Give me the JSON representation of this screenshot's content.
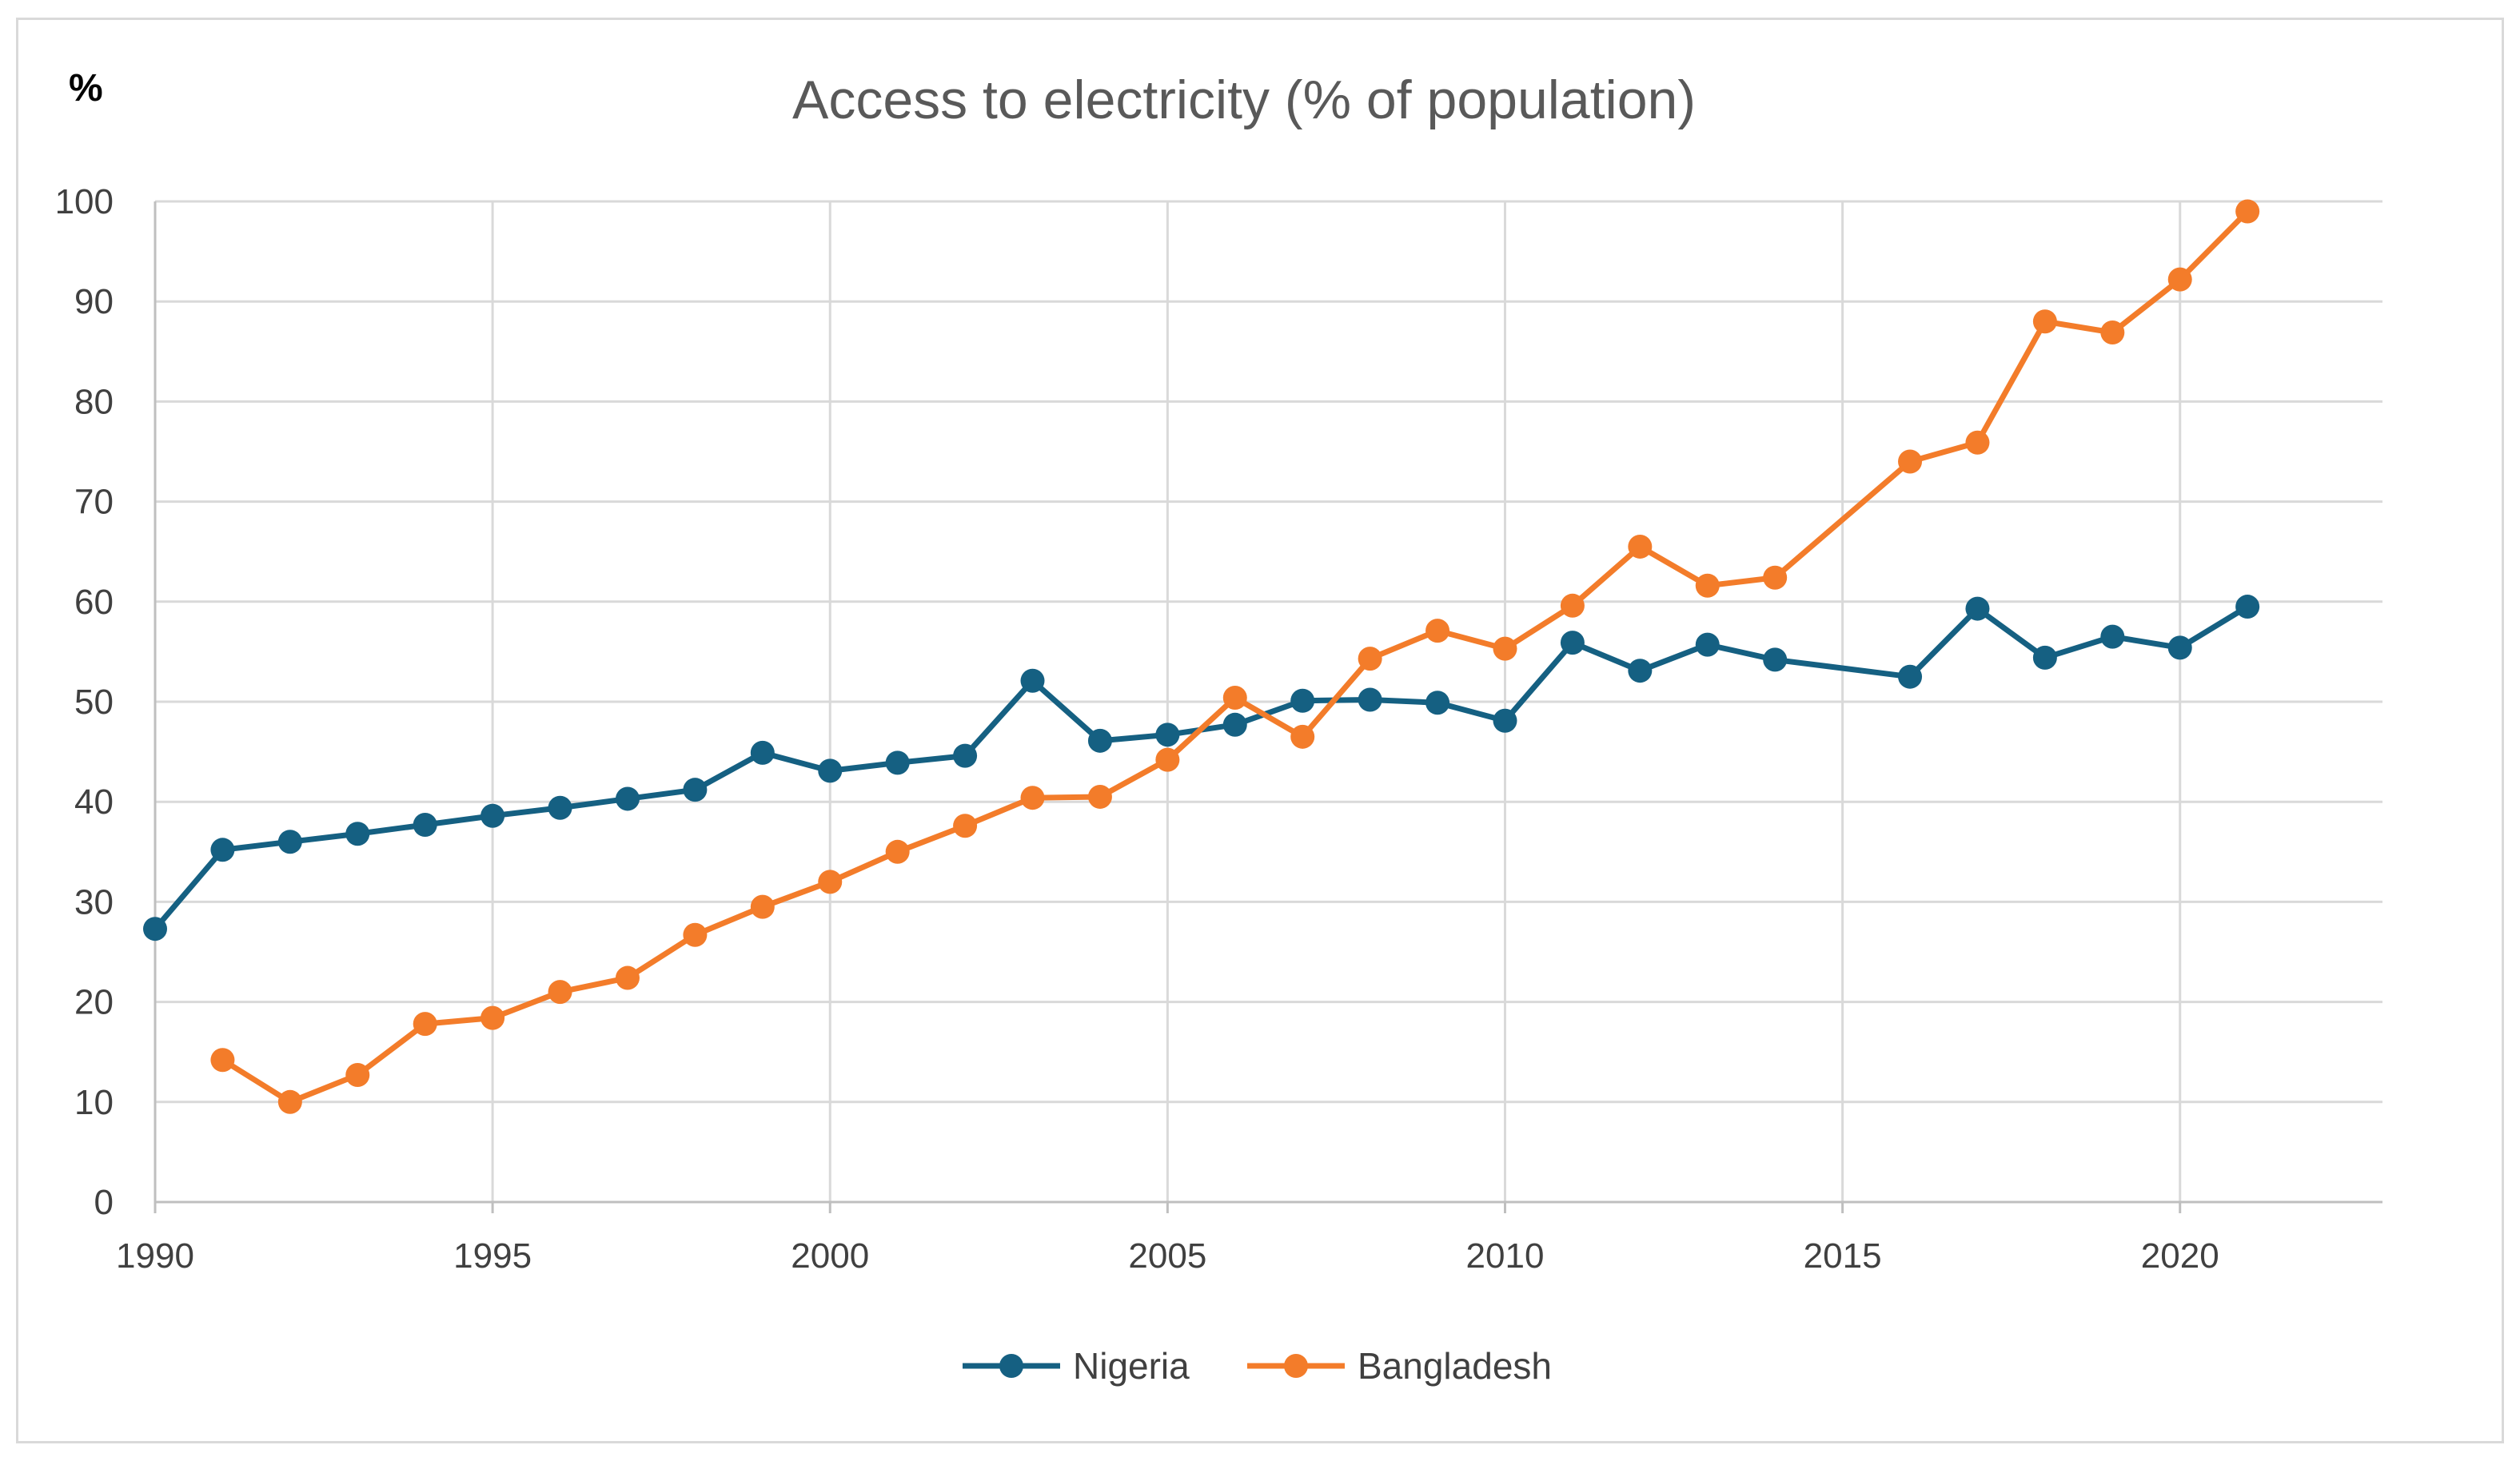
{
  "chart_data": {
    "type": "line",
    "title": "Access to electricity (% of population)",
    "y_unit_label": "%",
    "xlabel": "",
    "ylabel": "%",
    "xlim": [
      1990,
      2023
    ],
    "ylim": [
      0,
      100
    ],
    "x_ticks": [
      1990,
      1995,
      2000,
      2005,
      2010,
      2015,
      2020
    ],
    "y_ticks": [
      0,
      10,
      20,
      30,
      40,
      50,
      60,
      70,
      80,
      90,
      100
    ],
    "grid": true,
    "legend_position": "bottom",
    "series": [
      {
        "name": "Nigeria",
        "color": "#156082",
        "points": [
          {
            "x": 1990,
            "y": 27.3
          },
          {
            "x": 1991,
            "y": 35.2
          },
          {
            "x": 1992,
            "y": 36.0
          },
          {
            "x": 1993,
            "y": 36.8
          },
          {
            "x": 1994,
            "y": 37.7
          },
          {
            "x": 1995,
            "y": 38.6
          },
          {
            "x": 1996,
            "y": 39.4
          },
          {
            "x": 1997,
            "y": 40.3
          },
          {
            "x": 1998,
            "y": 41.2
          },
          {
            "x": 1999,
            "y": 44.9
          },
          {
            "x": 2000,
            "y": 43.1
          },
          {
            "x": 2001,
            "y": 43.9
          },
          {
            "x": 2002,
            "y": 44.6
          },
          {
            "x": 2003,
            "y": 52.1
          },
          {
            "x": 2004,
            "y": 46.1
          },
          {
            "x": 2005,
            "y": 46.7
          },
          {
            "x": 2006,
            "y": 47.7
          },
          {
            "x": 2007,
            "y": 50.1
          },
          {
            "x": 2008,
            "y": 50.2
          },
          {
            "x": 2009,
            "y": 49.9
          },
          {
            "x": 2010,
            "y": 48.1
          },
          {
            "x": 2011,
            "y": 55.9
          },
          {
            "x": 2012,
            "y": 53.1
          },
          {
            "x": 2013,
            "y": 55.7
          },
          {
            "x": 2014,
            "y": 54.2
          },
          {
            "x": 2016,
            "y": 52.5
          },
          {
            "x": 2017,
            "y": 59.3
          },
          {
            "x": 2018,
            "y": 54.4
          },
          {
            "x": 2019,
            "y": 56.5
          },
          {
            "x": 2020,
            "y": 55.4
          },
          {
            "x": 2021,
            "y": 59.5
          }
        ]
      },
      {
        "name": "Bangladesh",
        "color": "#f37c2a",
        "points": [
          {
            "x": 1991,
            "y": 14.2
          },
          {
            "x": 1992,
            "y": 10.0
          },
          {
            "x": 1993,
            "y": 12.7
          },
          {
            "x": 1994,
            "y": 17.8
          },
          {
            "x": 1995,
            "y": 18.4
          },
          {
            "x": 1996,
            "y": 21.0
          },
          {
            "x": 1997,
            "y": 22.4
          },
          {
            "x": 1998,
            "y": 26.7
          },
          {
            "x": 1999,
            "y": 29.5
          },
          {
            "x": 2000,
            "y": 32.0
          },
          {
            "x": 2001,
            "y": 35.0
          },
          {
            "x": 2002,
            "y": 37.6
          },
          {
            "x": 2003,
            "y": 40.4
          },
          {
            "x": 2004,
            "y": 40.5
          },
          {
            "x": 2005,
            "y": 44.2
          },
          {
            "x": 2006,
            "y": 50.4
          },
          {
            "x": 2007,
            "y": 46.5
          },
          {
            "x": 2008,
            "y": 54.3
          },
          {
            "x": 2009,
            "y": 57.1
          },
          {
            "x": 2010,
            "y": 55.3
          },
          {
            "x": 2011,
            "y": 59.6
          },
          {
            "x": 2012,
            "y": 65.5
          },
          {
            "x": 2013,
            "y": 61.6
          },
          {
            "x": 2014,
            "y": 62.4
          },
          {
            "x": 2016,
            "y": 74.0
          },
          {
            "x": 2017,
            "y": 75.9
          },
          {
            "x": 2018,
            "y": 88.0
          },
          {
            "x": 2019,
            "y": 86.9
          },
          {
            "x": 2020,
            "y": 92.2
          },
          {
            "x": 2021,
            "y": 99.0
          }
        ]
      }
    ]
  }
}
